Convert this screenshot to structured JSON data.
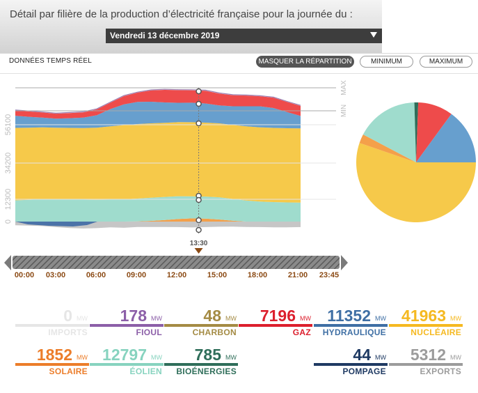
{
  "header": {
    "title": "Détail par filière de la production d’électricité française pour la journée du :",
    "date": "Vendredi 13 décembre 2019"
  },
  "controls": {
    "realtime_label": "DONNÉES TEMPS RÉEL",
    "hide_label": "MASQUER LA RÉPARTITION",
    "min_label": "MINIMUM",
    "max_label": "MAXIMUM"
  },
  "chart_data": {
    "type": "area",
    "y_ticks": [
      "0",
      "12300",
      "34200",
      "56100"
    ],
    "legend_max": "MAX",
    "legend_min": "MIN",
    "cursor_time": "13:30",
    "x_ticks": [
      "00:00",
      "03:00",
      "06:00",
      "09:00",
      "12:00",
      "15:00",
      "18:00",
      "21:00",
      "23:45"
    ],
    "x": [
      "00:00",
      "01:00",
      "02:00",
      "03:00",
      "04:00",
      "05:00",
      "06:00",
      "07:00",
      "08:00",
      "09:00",
      "10:00",
      "11:00",
      "12:00",
      "13:00",
      "14:00",
      "15:00",
      "16:00",
      "17:00",
      "18:00",
      "19:00",
      "20:00",
      "21:00"
    ],
    "series": [
      {
        "key": "solaire",
        "color": "#f4a04a",
        "values": [
          0,
          0,
          0,
          0,
          0,
          0,
          0,
          0,
          0,
          100,
          400,
          900,
          1500,
          1850,
          1700,
          1200,
          500,
          0,
          0,
          0,
          0,
          0
        ]
      },
      {
        "key": "eolien",
        "color": "#9fdccd",
        "values": [
          12300,
          12600,
          12900,
          12900,
          12800,
          12700,
          12600,
          12700,
          12900,
          13200,
          13400,
          13400,
          13200,
          12800,
          12800,
          12900,
          12600,
          12200,
          11600,
          11300,
          11100,
          11000
        ]
      },
      {
        "key": "nucleaire",
        "color": "#f6c94a",
        "values": [
          42000,
          41800,
          41700,
          41500,
          41500,
          41500,
          41800,
          42500,
          43000,
          43200,
          43100,
          42900,
          42900,
          42900,
          42800,
          42800,
          42900,
          43000,
          43000,
          43000,
          43000,
          43000
        ]
      },
      {
        "key": "hydraulique",
        "color": "#679fce",
        "values": [
          7000,
          6300,
          5600,
          5200,
          5600,
          6000,
          7200,
          10000,
          12000,
          12800,
          12500,
          11800,
          11200,
          11300,
          11100,
          10400,
          10800,
          11600,
          12200,
          11500,
          9400,
          7200
        ]
      },
      {
        "key": "gaz",
        "color": "#ee4b4b",
        "values": [
          3000,
          3100,
          3000,
          2900,
          3000,
          3100,
          3400,
          3700,
          4800,
          5400,
          6600,
          7300,
          7300,
          7200,
          7400,
          6900,
          6400,
          6200,
          5800,
          6000,
          5800,
          5800
        ]
      }
    ],
    "pie": [
      {
        "key": "nucleaire",
        "color": "#f6c94a",
        "value": 41963
      },
      {
        "key": "solaire",
        "color": "#f4a04a",
        "value": 1852
      },
      {
        "key": "eolien",
        "color": "#9fdccd",
        "value": 12797
      },
      {
        "key": "bioenergies",
        "color": "#2f6e5a",
        "value": 785
      },
      {
        "key": "gaz",
        "color": "#ee4b4b",
        "value": 7196
      },
      {
        "key": "hydraulique",
        "color": "#679fce",
        "value": 11352
      }
    ]
  },
  "stats": [
    {
      "key": "imports",
      "value": "0",
      "unit": "MW",
      "label": "IMPORTS",
      "color": "#e6e6e6"
    },
    {
      "key": "fioul",
      "value": "178",
      "unit": "MW",
      "label": "FIOUL",
      "color": "#8c5fa8"
    },
    {
      "key": "charbon",
      "value": "48",
      "unit": "MW",
      "label": "CHARBON",
      "color": "#a48b44"
    },
    {
      "key": "gaz",
      "value": "7196",
      "unit": "MW",
      "label": "GAZ",
      "color": "#dc1f2d"
    },
    {
      "key": "hydraulique",
      "value": "11352",
      "unit": "MW",
      "label": "HYDRAULIQUE",
      "color": "#3f6fa4"
    },
    {
      "key": "nucleaire",
      "value": "41963",
      "unit": "MW",
      "label": "NUCLÉAIRE",
      "color": "#f5b921"
    },
    {
      "key": "solaire",
      "value": "1852",
      "unit": "MW",
      "label": "SOLAIRE",
      "color": "#ec7d2a"
    },
    {
      "key": "eolien",
      "value": "12797",
      "unit": "MW",
      "label": "ÉOLIEN",
      "color": "#87d3bf"
    },
    {
      "key": "bioenergies",
      "value": "785",
      "unit": "MW",
      "label": "BIOÉNERGIES",
      "color": "#2f6e5a"
    },
    {
      "key": "spacer",
      "value": "",
      "unit": "",
      "label": "",
      "color": "transparent"
    },
    {
      "key": "pompage",
      "value": "44",
      "unit": "MW",
      "label": "POMPAGE",
      "color": "#1f3a63"
    },
    {
      "key": "exports",
      "value": "5312",
      "unit": "MW",
      "label": "EXPORTS",
      "color": "#9c9c9c"
    }
  ]
}
